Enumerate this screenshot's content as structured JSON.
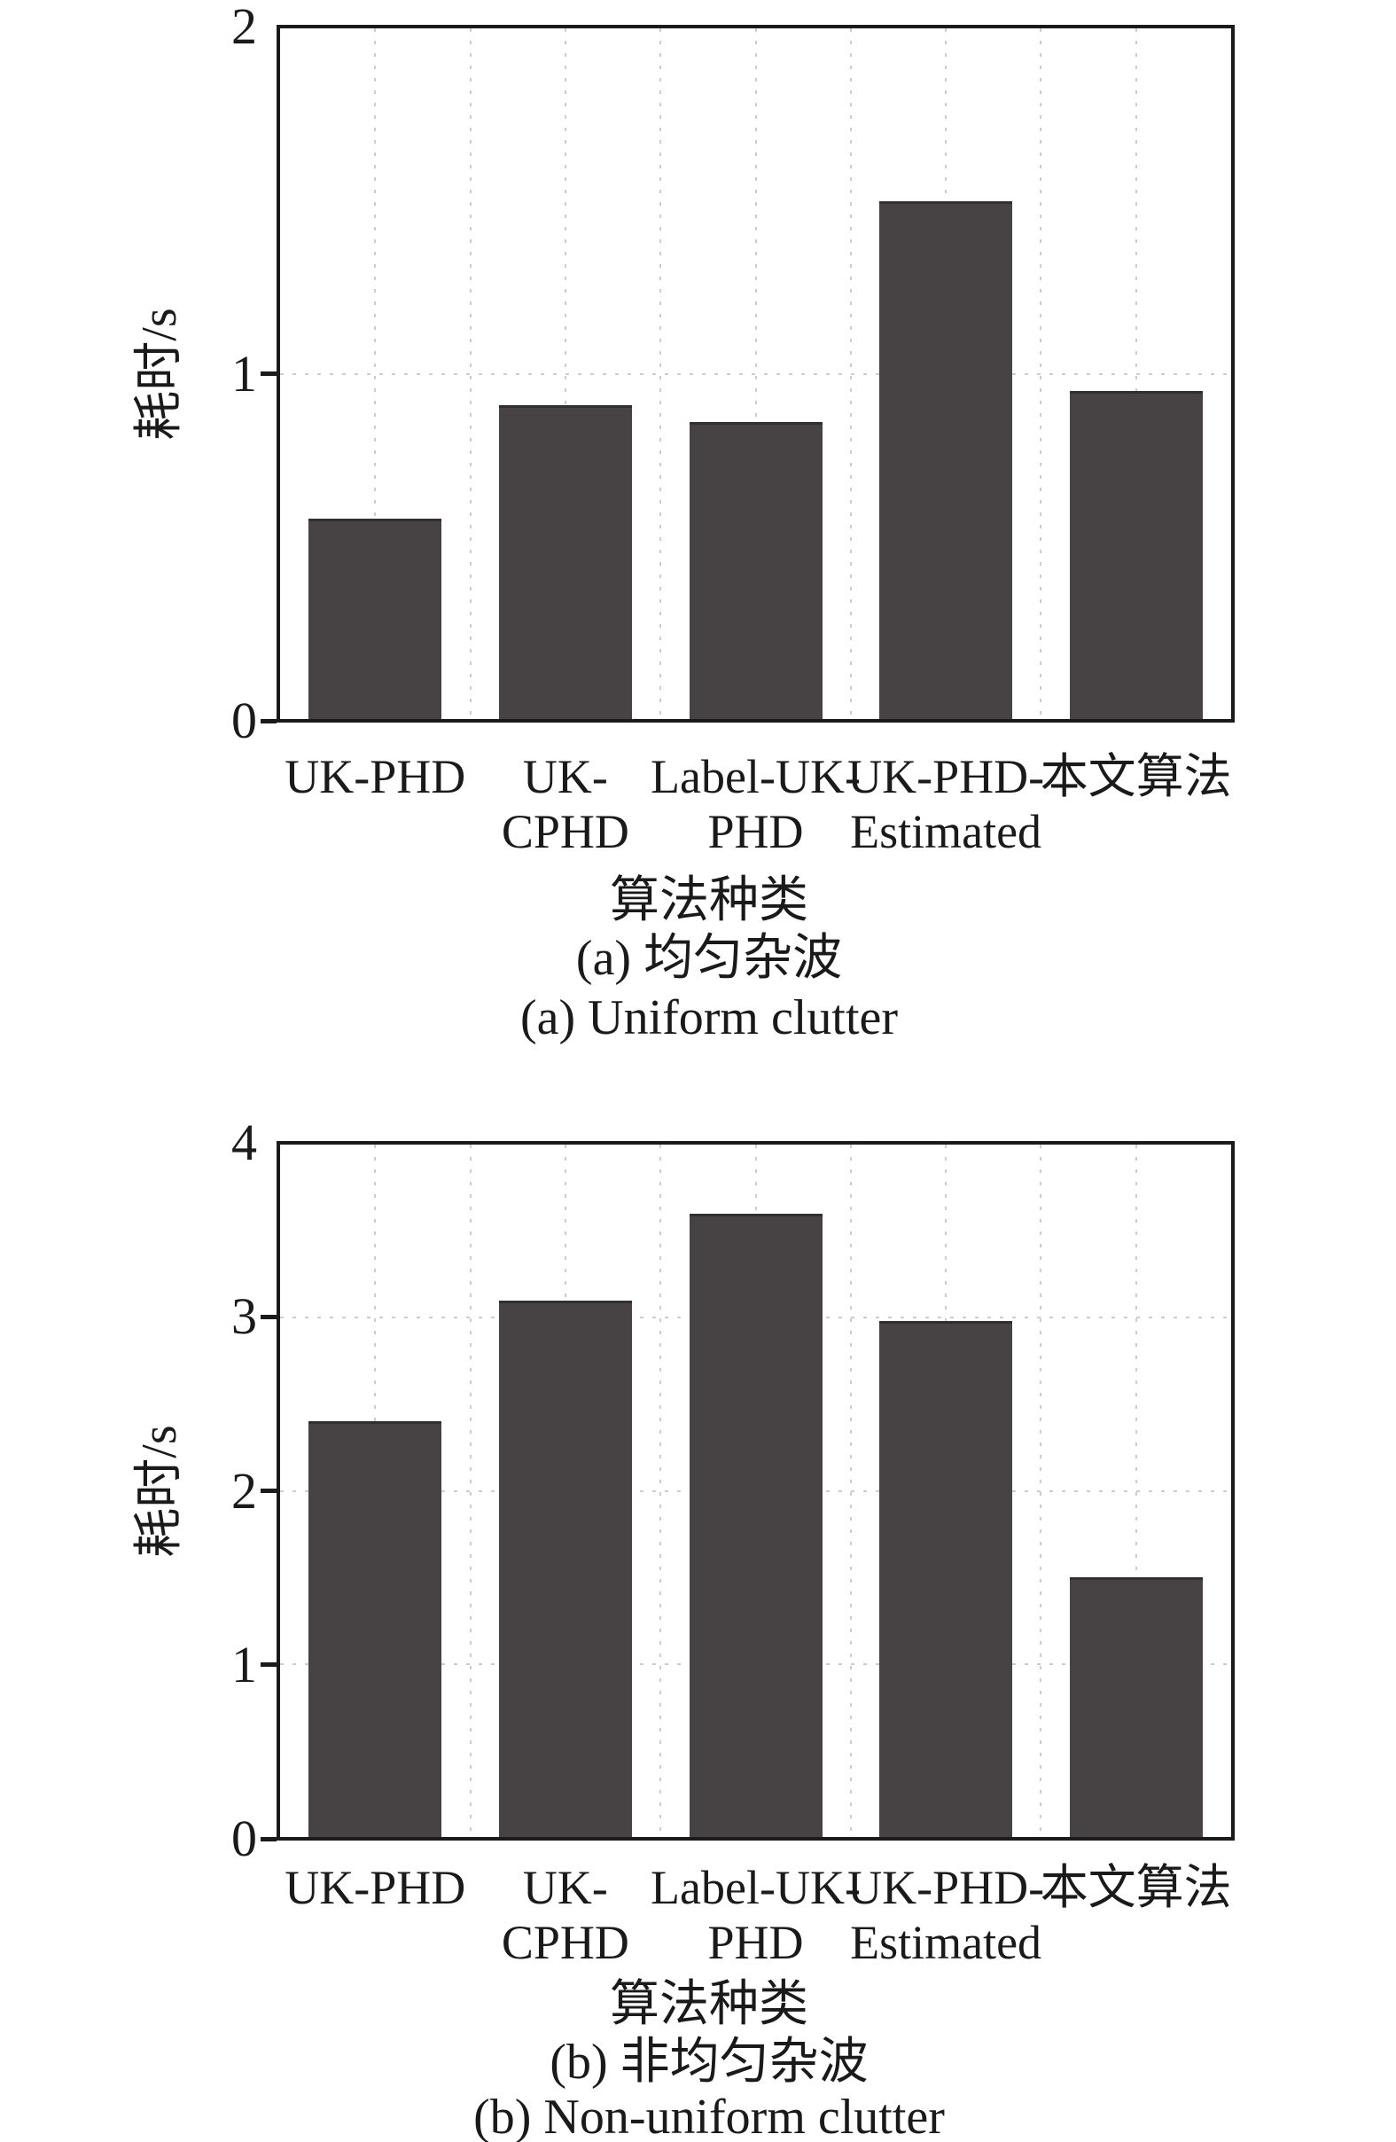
{
  "figure": {
    "background": "#ffffff",
    "bar_color": "#474345",
    "axis_color": "#1b1b1b",
    "grid_color": "#c3c3c3",
    "text_color": "#1a1a1a"
  },
  "chart_data": [
    {
      "type": "bar",
      "categories": [
        "UK-PHD",
        "UK-\nCPHD",
        "Label-UK-\nPHD",
        "UK-PHD-\nEstimated",
        "本文算法"
      ],
      "values": [
        0.58,
        0.91,
        0.86,
        1.5,
        0.95
      ],
      "title": "",
      "xlabel": "算法种类",
      "ylabel": "耗时/s",
      "ylim": [
        0,
        2
      ],
      "yticks": [
        "0",
        "1",
        "2"
      ],
      "grid": "dotted",
      "legend": "none",
      "caption_zh": "(a) 均匀杂波",
      "caption_en": "(a) Uniform clutter"
    },
    {
      "type": "bar",
      "categories": [
        "UK-PHD",
        "UK-\nCPHD",
        "Label-UK-\nPHD",
        "UK-PHD-\nEstimated",
        "本文算法"
      ],
      "values": [
        2.4,
        3.1,
        3.6,
        2.98,
        1.5
      ],
      "title": "",
      "xlabel": "算法种类",
      "ylabel": "耗时/s",
      "ylim": [
        0,
        4
      ],
      "yticks": [
        "0",
        "1",
        "2",
        "3",
        "4"
      ],
      "grid": "dotted",
      "legend": "none",
      "caption_zh": "(b) 非均匀杂波",
      "caption_en": "(b) Non-uniform clutter"
    }
  ]
}
